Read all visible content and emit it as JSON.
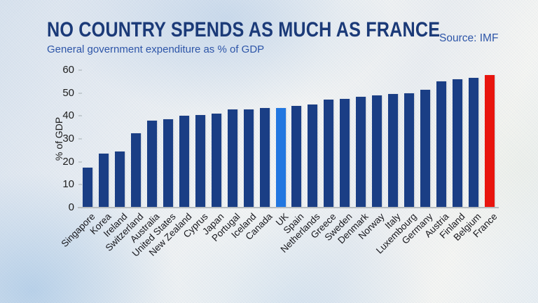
{
  "header": {
    "title": "NO COUNTRY SPENDS AS MUCH AS FRANCE",
    "subtitle": "General government expenditure as % of GDP",
    "source": "Source: IMF"
  },
  "colors": {
    "title_text": "#1b3a78",
    "subtitle_text": "#2d55a8",
    "source_text": "#2d55a8",
    "bar_default": "#1a3e85",
    "bar_uk_highlight": "#2277e0",
    "bar_france_highlight": "#e8150e",
    "axis_text": "#1d1d1d",
    "axis_line": "#b7bcbf"
  },
  "chart_data": {
    "type": "bar",
    "title": "NO COUNTRY SPENDS AS MUCH AS FRANCE",
    "subtitle": "General government expenditure as % of GDP",
    "source": "Source: IMF",
    "xlabel": "",
    "ylabel": "% of GDP",
    "ylim": [
      0,
      60
    ],
    "yticks": [
      0,
      10,
      20,
      30,
      40,
      50,
      60
    ],
    "grid": false,
    "legend": "none",
    "bar_color": "#1a3e85",
    "highlights": [
      {
        "category": "UK",
        "color": "#2277e0"
      },
      {
        "category": "France",
        "color": "#e8150e"
      }
    ],
    "categories": [
      "Singapore",
      "Korea",
      "Ireland",
      "Switzerland",
      "Australia",
      "United States",
      "New Zealand",
      "Cyprus",
      "Japan",
      "Portugal",
      "Iceland",
      "Canada",
      "UK",
      "Spain",
      "Netherlands",
      "Greece",
      "Sweden",
      "Denmark",
      "Norway",
      "Italy",
      "Luxembourg",
      "Germany",
      "Austria",
      "Finland",
      "Belgium",
      "France"
    ],
    "values": [
      17.5,
      23.5,
      24.5,
      32.5,
      38,
      38.5,
      40,
      40.5,
      41,
      43,
      43,
      43.5,
      43.5,
      44.5,
      45,
      47,
      47.5,
      48.5,
      49,
      49.5,
      50,
      51.5,
      55,
      56,
      56.5,
      58
    ]
  }
}
